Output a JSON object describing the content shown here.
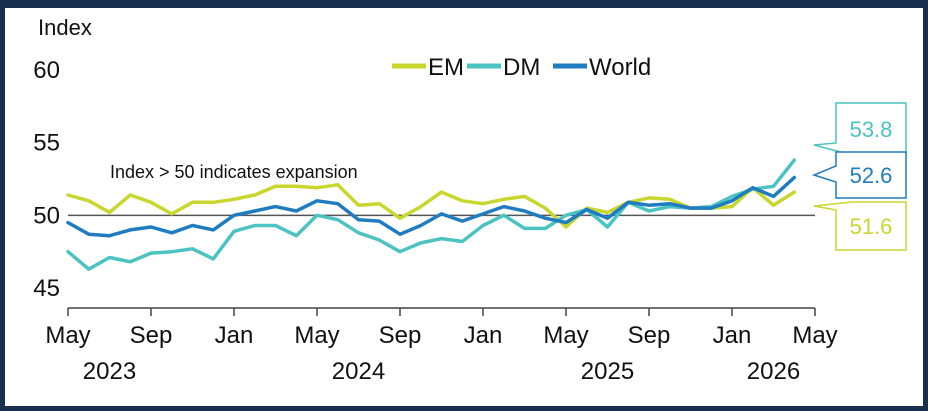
{
  "chart_data": {
    "type": "line",
    "ylabel": "Index",
    "ylim": [
      45,
      60
    ],
    "yticks": [
      45,
      50,
      55,
      60
    ],
    "reference_line": {
      "value": 50,
      "label": "Index > 50 indicates expansion"
    },
    "x_months": [
      "2023-05",
      "2023-06",
      "2023-07",
      "2023-08",
      "2023-09",
      "2023-10",
      "2023-11",
      "2023-12",
      "2024-01",
      "2024-02",
      "2024-03",
      "2024-04",
      "2024-05",
      "2024-06",
      "2024-07",
      "2024-08",
      "2024-09",
      "2024-10",
      "2024-11",
      "2024-12",
      "2025-01",
      "2025-02",
      "2025-03",
      "2025-04",
      "2025-05",
      "2025-06",
      "2025-07",
      "2025-08",
      "2025-09",
      "2025-10",
      "2025-11",
      "2025-12",
      "2026-01",
      "2026-02",
      "2026-03",
      "2026-04"
    ],
    "xtick_labels": [
      "May",
      "Sep",
      "Jan",
      "May",
      "Sep",
      "Jan",
      "May",
      "Sep",
      "Jan",
      "May"
    ],
    "xtick_months": [
      "2023-05",
      "2023-09",
      "2024-01",
      "2024-05",
      "2024-09",
      "2025-01",
      "2025-05",
      "2025-09",
      "2026-01",
      "2026-05"
    ],
    "year_labels": [
      "2023",
      "2024",
      "2025",
      "2026"
    ],
    "year_label_months": [
      "2023-07",
      "2024-07",
      "2025-07",
      "2026-03"
    ],
    "legend_position": "top",
    "series": [
      {
        "name": "EM",
        "color": "#c8d62e",
        "values": [
          51.4,
          51.0,
          50.2,
          51.4,
          50.9,
          50.1,
          50.9,
          50.9,
          51.1,
          51.4,
          52.0,
          52.0,
          51.9,
          52.1,
          50.7,
          50.8,
          49.8,
          50.6,
          51.6,
          51.0,
          50.8,
          51.1,
          51.3,
          50.5,
          49.2,
          50.5,
          50.2,
          50.9,
          51.2,
          51.1,
          50.5,
          50.5,
          50.6,
          51.9,
          50.7,
          51.6
        ]
      },
      {
        "name": "DM",
        "color": "#4cc3c3",
        "values": [
          47.5,
          46.3,
          47.1,
          46.8,
          47.4,
          47.5,
          47.7,
          47.0,
          48.9,
          49.3,
          49.3,
          48.6,
          50.0,
          49.7,
          48.8,
          48.3,
          47.5,
          48.1,
          48.4,
          48.2,
          49.3,
          50.0,
          49.1,
          49.1,
          50.0,
          50.4,
          49.2,
          50.9,
          50.3,
          50.6,
          50.5,
          50.6,
          51.3,
          51.8,
          52.0,
          53.8
        ]
      },
      {
        "name": "World",
        "color": "#1f7cc1",
        "values": [
          49.5,
          48.7,
          48.6,
          49.0,
          49.2,
          48.8,
          49.3,
          49.0,
          50.0,
          50.3,
          50.6,
          50.3,
          51.0,
          50.8,
          49.7,
          49.6,
          48.7,
          49.3,
          50.1,
          49.6,
          50.1,
          50.6,
          50.3,
          49.8,
          49.5,
          50.4,
          49.8,
          50.9,
          50.7,
          50.8,
          50.5,
          50.5,
          51.0,
          51.9,
          51.3,
          52.6
        ]
      }
    ],
    "end_labels": [
      "53.8",
      "52.6",
      "51.6"
    ]
  }
}
